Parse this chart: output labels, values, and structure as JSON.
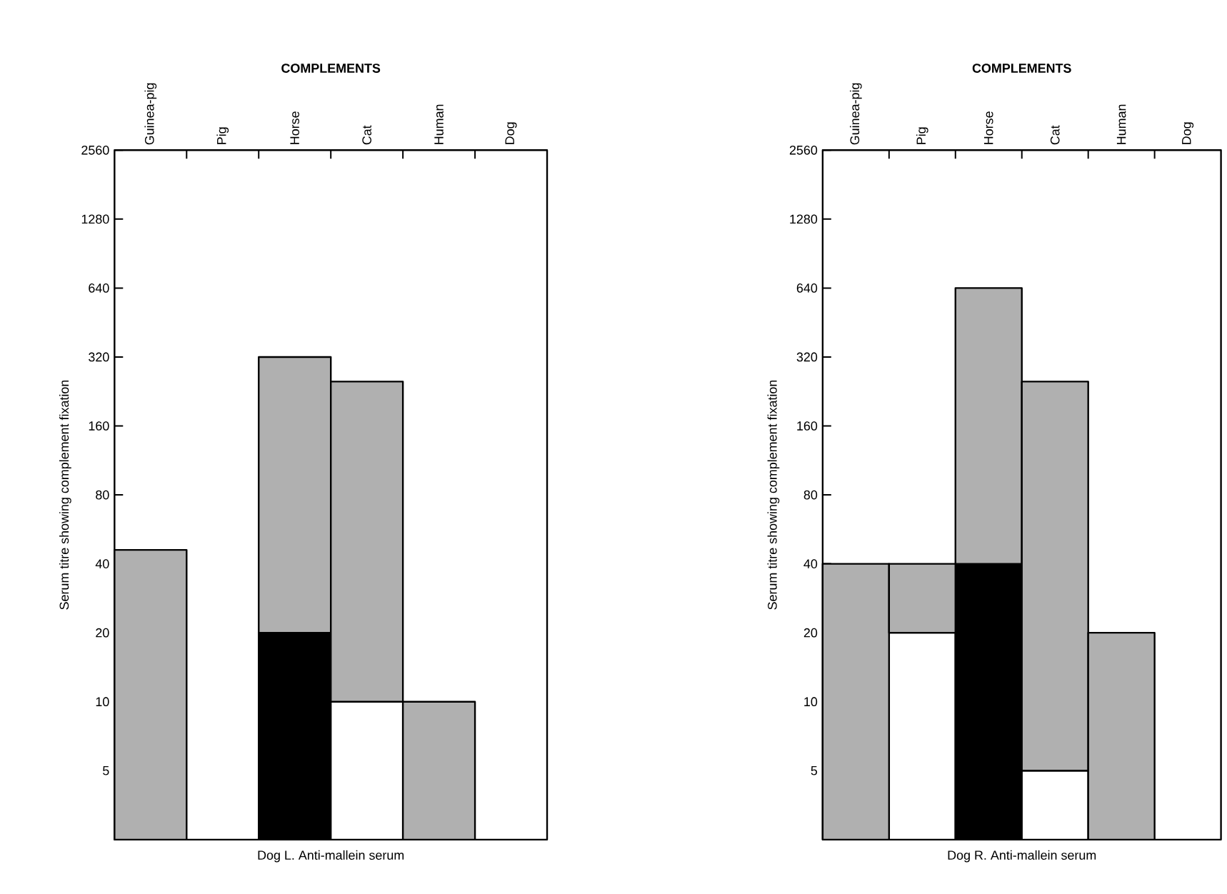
{
  "chart_data": [
    {
      "type": "bar",
      "title": "Dog L. Anti-mallein serum",
      "xlabel": "COMPLEMENTS",
      "ylabel": "Serum titre showing complement fixation",
      "categories": [
        "Guinea-pig",
        "Pig",
        "Horse",
        "Cat",
        "Human",
        "Dog"
      ],
      "stacked": true,
      "log": "y",
      "ylim": [
        2.5,
        2560
      ],
      "yticks": [
        5,
        10,
        20,
        40,
        80,
        160,
        320,
        640,
        1280,
        2560
      ],
      "series": [
        {
          "colors": [
            null,
            null,
            "#000000",
            "#ffffff",
            null,
            null
          ],
          "values": [
            null,
            null,
            20,
            10,
            null,
            null
          ]
        },
        {
          "color": "#b0b0b0",
          "values": [
            46,
            null,
            300,
            240,
            10,
            null
          ]
        }
      ]
    },
    {
      "type": "bar",
      "title": "Dog R. Anti-mallein serum",
      "xlabel": "COMPLEMENTS",
      "ylabel": "Serum titre showing complement fixation",
      "categories": [
        "Guinea-pig",
        "Pig",
        "Horse",
        "Cat",
        "Human",
        "Dog"
      ],
      "stacked": true,
      "log": "y",
      "ylim": [
        2.5,
        2560
      ],
      "yticks": [
        5,
        10,
        20,
        40,
        80,
        160,
        320,
        640,
        1280,
        2560
      ],
      "series": [
        {
          "colors": [
            null,
            "#ffffff",
            "#000000",
            "#ffffff",
            null,
            null
          ],
          "values": [
            null,
            20,
            40,
            5,
            null,
            null
          ]
        },
        {
          "color": "#b0b0b0",
          "values": [
            40,
            20,
            600,
            245,
            20,
            null
          ]
        }
      ]
    }
  ]
}
